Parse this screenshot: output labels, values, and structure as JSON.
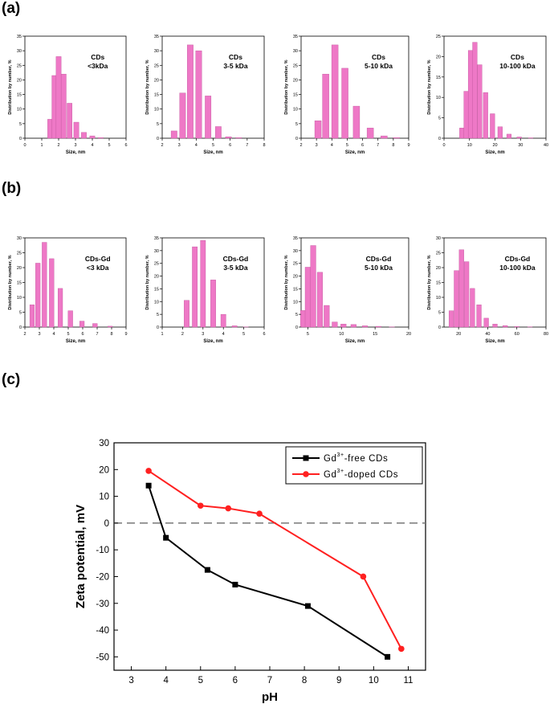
{
  "panel_labels": {
    "a": "(a)",
    "b": "(b)",
    "c": "(c)"
  },
  "colors": {
    "bar_fill": "#ee78c6",
    "bar_stroke": "#c0559c",
    "free": "#000000",
    "doped": "#ff2020",
    "zero_line": "#777777"
  },
  "chart_data": [
    {
      "id": "a1",
      "type": "bar",
      "title_lines": [
        "CDs",
        "<3kDa"
      ],
      "xlabel": "Size, nm",
      "ylabel": "Distribution by number, %",
      "xlim": [
        0,
        6
      ],
      "ylim": [
        0,
        35
      ],
      "xticks": [
        0,
        1,
        2,
        3,
        4,
        5,
        6
      ],
      "yticks": [
        0,
        5,
        10,
        15,
        20,
        25,
        30,
        35
      ],
      "bar_width": 0.3,
      "x": [
        1.5,
        1.75,
        2.0,
        2.3,
        2.65,
        3.05,
        3.5,
        4.0,
        4.5
      ],
      "values": [
        6.5,
        21.5,
        28,
        22,
        12,
        5.5,
        2,
        0.8,
        0.2
      ]
    },
    {
      "id": "a2",
      "type": "bar",
      "title_lines": [
        "CDs",
        "3-5 kDa"
      ],
      "xlabel": "Size, nm",
      "ylabel": "Distribution by number, %",
      "xlim": [
        2,
        8
      ],
      "ylim": [
        0,
        35
      ],
      "xticks": [
        2,
        3,
        4,
        5,
        6,
        7,
        8
      ],
      "yticks": [
        0,
        5,
        10,
        15,
        20,
        25,
        30,
        35
      ],
      "bar_width": 0.35,
      "x": [
        2.7,
        3.2,
        3.65,
        4.15,
        4.7,
        5.3,
        5.9,
        6.5
      ],
      "values": [
        2.5,
        15.5,
        32,
        30,
        14.5,
        4,
        0.5,
        0.2
      ]
    },
    {
      "id": "a3",
      "type": "bar",
      "title_lines": [
        "CDs",
        "5-10 kDa"
      ],
      "xlabel": "Size, nm",
      "ylabel": "Distribution by number, %",
      "xlim": [
        2,
        9
      ],
      "ylim": [
        0,
        35
      ],
      "xticks": [
        2,
        3,
        4,
        5,
        6,
        7,
        8,
        9
      ],
      "yticks": [
        0,
        5,
        10,
        15,
        20,
        25,
        30,
        35
      ],
      "bar_width": 0.42,
      "x": [
        3.1,
        3.6,
        4.2,
        4.85,
        5.6,
        6.5,
        7.4,
        8.2
      ],
      "values": [
        6,
        22,
        32,
        24,
        11,
        3.5,
        0.8,
        0.2
      ]
    },
    {
      "id": "a4",
      "type": "bar",
      "title_lines": [
        "CDs",
        "10-100 kDa"
      ],
      "xlabel": "Size, nm",
      "ylabel": "Distribution by number, %",
      "xlim": [
        0,
        40
      ],
      "ylim": [
        0,
        25
      ],
      "xticks": [
        0,
        10,
        20,
        30,
        40
      ],
      "yticks": [
        0,
        5,
        10,
        15,
        20,
        25
      ],
      "bar_width": 1.8,
      "x": [
        7,
        8.7,
        10.4,
        12.1,
        14,
        16.3,
        19,
        22,
        25.5,
        29.5,
        34
      ],
      "values": [
        2.5,
        11.5,
        21.5,
        23.5,
        18,
        11.2,
        6,
        2.8,
        1,
        0.3,
        0.1
      ]
    },
    {
      "id": "b1",
      "type": "bar",
      "title_lines": [
        "CDs-Gd",
        "<3 kDa"
      ],
      "xlabel": "Size, nm",
      "ylabel": "Distribution by number, %",
      "xlim": [
        2,
        9
      ],
      "ylim": [
        0,
        30
      ],
      "xticks": [
        2,
        3,
        4,
        5,
        6,
        7,
        8,
        9
      ],
      "yticks": [
        0,
        5,
        10,
        15,
        20,
        25,
        30
      ],
      "bar_width": 0.32,
      "x": [
        2.5,
        2.9,
        3.35,
        3.85,
        4.45,
        5.15,
        5.95,
        6.85,
        7.9
      ],
      "values": [
        7.5,
        21.5,
        28.5,
        23,
        13,
        5.5,
        2,
        1.2,
        0.3
      ]
    },
    {
      "id": "b2",
      "type": "bar",
      "title_lines": [
        "CDs-Gd",
        "3-5 kDa"
      ],
      "xlabel": "Size, nm",
      "ylabel": "Distribution by number, %",
      "xlim": [
        1,
        6
      ],
      "ylim": [
        0,
        35
      ],
      "xticks": [
        1,
        2,
        3,
        4,
        5,
        6
      ],
      "yticks": [
        0,
        5,
        10,
        15,
        20,
        25,
        30,
        35
      ],
      "bar_width": 0.25,
      "x": [
        2.2,
        2.6,
        3.0,
        3.5,
        4.0,
        4.55,
        5.1
      ],
      "values": [
        10.5,
        31.5,
        34,
        18.5,
        5,
        0.5,
        0.1
      ]
    },
    {
      "id": "b3",
      "type": "bar",
      "title_lines": [
        "CDs-Gd",
        "5-10 kDa"
      ],
      "xlabel": "Size, nm",
      "ylabel": "Distribution by number, %",
      "xlim": [
        4,
        20
      ],
      "ylim": [
        0,
        35
      ],
      "xticks": [
        5,
        10,
        15,
        20
      ],
      "yticks": [
        0,
        5,
        10,
        15,
        20,
        25,
        30,
        35
      ],
      "bar_width": 0.8,
      "x": [
        4.3,
        5.0,
        5.8,
        6.8,
        7.8,
        9.0,
        10.3,
        11.8,
        13.5,
        15.5,
        17.5
      ],
      "values": [
        6.5,
        23.5,
        32,
        21.5,
        8.5,
        2,
        1.2,
        1,
        0.5,
        0.3,
        0.1
      ]
    },
    {
      "id": "b4",
      "type": "bar",
      "title_lines": [
        "CDs-Gd",
        "10-100 kDa"
      ],
      "xlabel": "Size, nm",
      "ylabel": "Distribution by number, %",
      "xlim": [
        10,
        80
      ],
      "ylim": [
        0,
        30
      ],
      "xticks": [
        20,
        40,
        60,
        80
      ],
      "yticks": [
        0,
        5,
        10,
        15,
        20,
        25,
        30
      ],
      "bar_width": 3.2,
      "x": [
        15,
        18.5,
        22,
        25.5,
        29.5,
        34,
        39,
        45,
        52,
        60,
        69
      ],
      "values": [
        5.5,
        19,
        26,
        22,
        13,
        7.5,
        3,
        1,
        0.5,
        0.2,
        0.1
      ]
    },
    {
      "id": "c",
      "type": "line",
      "xlabel": "pH",
      "ylabel": "Zeta potential, mV",
      "xlim": [
        2.5,
        11.5
      ],
      "ylim": [
        -55,
        30
      ],
      "xticks": [
        3,
        4,
        5,
        6,
        7,
        8,
        9,
        10,
        11
      ],
      "yticks": [
        -50,
        -40,
        -30,
        -20,
        -10,
        0,
        10,
        20,
        30
      ],
      "zero_line": true,
      "series": [
        {
          "name": "free",
          "legend_prefix": "Gd",
          "legend_sup": "3+",
          "legend_suffix": "-free CDs",
          "marker": "square",
          "x": [
            3.5,
            4.0,
            5.2,
            6.0,
            8.1,
            10.4
          ],
          "y": [
            14,
            -5.5,
            -17.5,
            -23,
            -31,
            -50
          ]
        },
        {
          "name": "doped",
          "legend_prefix": "Gd",
          "legend_sup": "3+",
          "legend_suffix": "-doped CDs",
          "marker": "circle",
          "x": [
            3.5,
            5.0,
            5.8,
            6.7,
            9.7,
            10.8
          ],
          "y": [
            19.5,
            6.5,
            5.5,
            3.5,
            -20,
            -47
          ]
        }
      ]
    }
  ]
}
